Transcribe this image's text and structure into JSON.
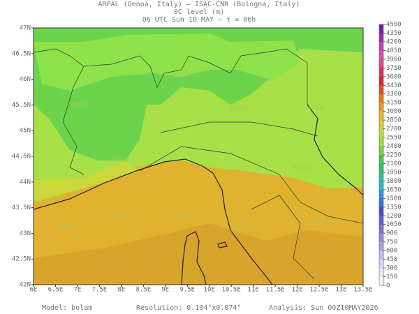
{
  "header": {
    "line1": "ARPAL (Genoa, Italy)  —  ISAC-CNR (Bologna, Italy)",
    "line2": "0C level (m)",
    "line3": "06 UTC Sun 10 MAY  —  τ = 06h"
  },
  "map": {
    "lon_ticks": [
      "6E",
      "6.5E",
      "7E",
      "7.5E",
      "8E",
      "8.5E",
      "9E",
      "9.5E",
      "10E",
      "10.5E",
      "11E",
      "11.5E",
      "12E",
      "12.5E",
      "13E",
      "13.5E"
    ],
    "lat_ticks": [
      "47N",
      "46.5N",
      "46N",
      "45.5N",
      "45N",
      "44.5N",
      "44N",
      "43.5N",
      "43N",
      "42.5N",
      "42N"
    ],
    "watermark": "ARPAL"
  },
  "colorbar": {
    "ticks": [
      4500,
      4350,
      4200,
      4050,
      3900,
      3750,
      3600,
      3450,
      3300,
      3150,
      3000,
      2850,
      2700,
      2550,
      2400,
      2250,
      2100,
      1950,
      1800,
      1650,
      1500,
      1350,
      1200,
      1050,
      900,
      750,
      600,
      450,
      300,
      150,
      0
    ],
    "colors": [
      "#7a1fa0",
      "#9a2ab8",
      "#c040c8",
      "#d850b0",
      "#e04890",
      "#e03060",
      "#d82828",
      "#e05020",
      "#e87818",
      "#e89a20",
      "#e8b828",
      "#d8d030",
      "#b8e038",
      "#98e040",
      "#70d848",
      "#48c848",
      "#30c070",
      "#30c0a0",
      "#30b8c8",
      "#3098d8",
      "#3070d8",
      "#4050c8",
      "#6060d0",
      "#8070d8",
      "#9888e0",
      "#b0a0e8",
      "#c8b8f0",
      "#dcd0f4",
      "#ece6f8",
      "#f8f6fc"
    ]
  },
  "footer": {
    "model": "Model: bolam",
    "resolution": "Resolution: 0.104°x0.074°",
    "analysis": "Analysis: Sun 00Z10MAY2026"
  }
}
